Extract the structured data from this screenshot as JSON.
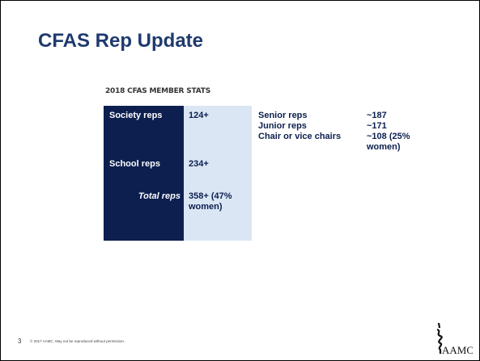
{
  "slide": {
    "title": "CFAS Rep Update",
    "subtitle": "2018 CFAS MEMBER STATS",
    "table": {
      "left": [
        {
          "label": "Society reps",
          "value": "124+"
        },
        {
          "label": "School reps",
          "value": "234+"
        },
        {
          "label": "Total reps",
          "value": "358+ (47% women)"
        }
      ],
      "right": [
        {
          "label": "Senior reps",
          "value": "~187"
        },
        {
          "label": "Junior reps",
          "value": "~171"
        },
        {
          "label": "Chair or vice chairs",
          "value": "~108 (25% women)"
        }
      ]
    },
    "footer": {
      "page": "3",
      "copyright": "© 2017 AAMC. May not be reproduced without permission."
    },
    "logo": "AAMC"
  }
}
